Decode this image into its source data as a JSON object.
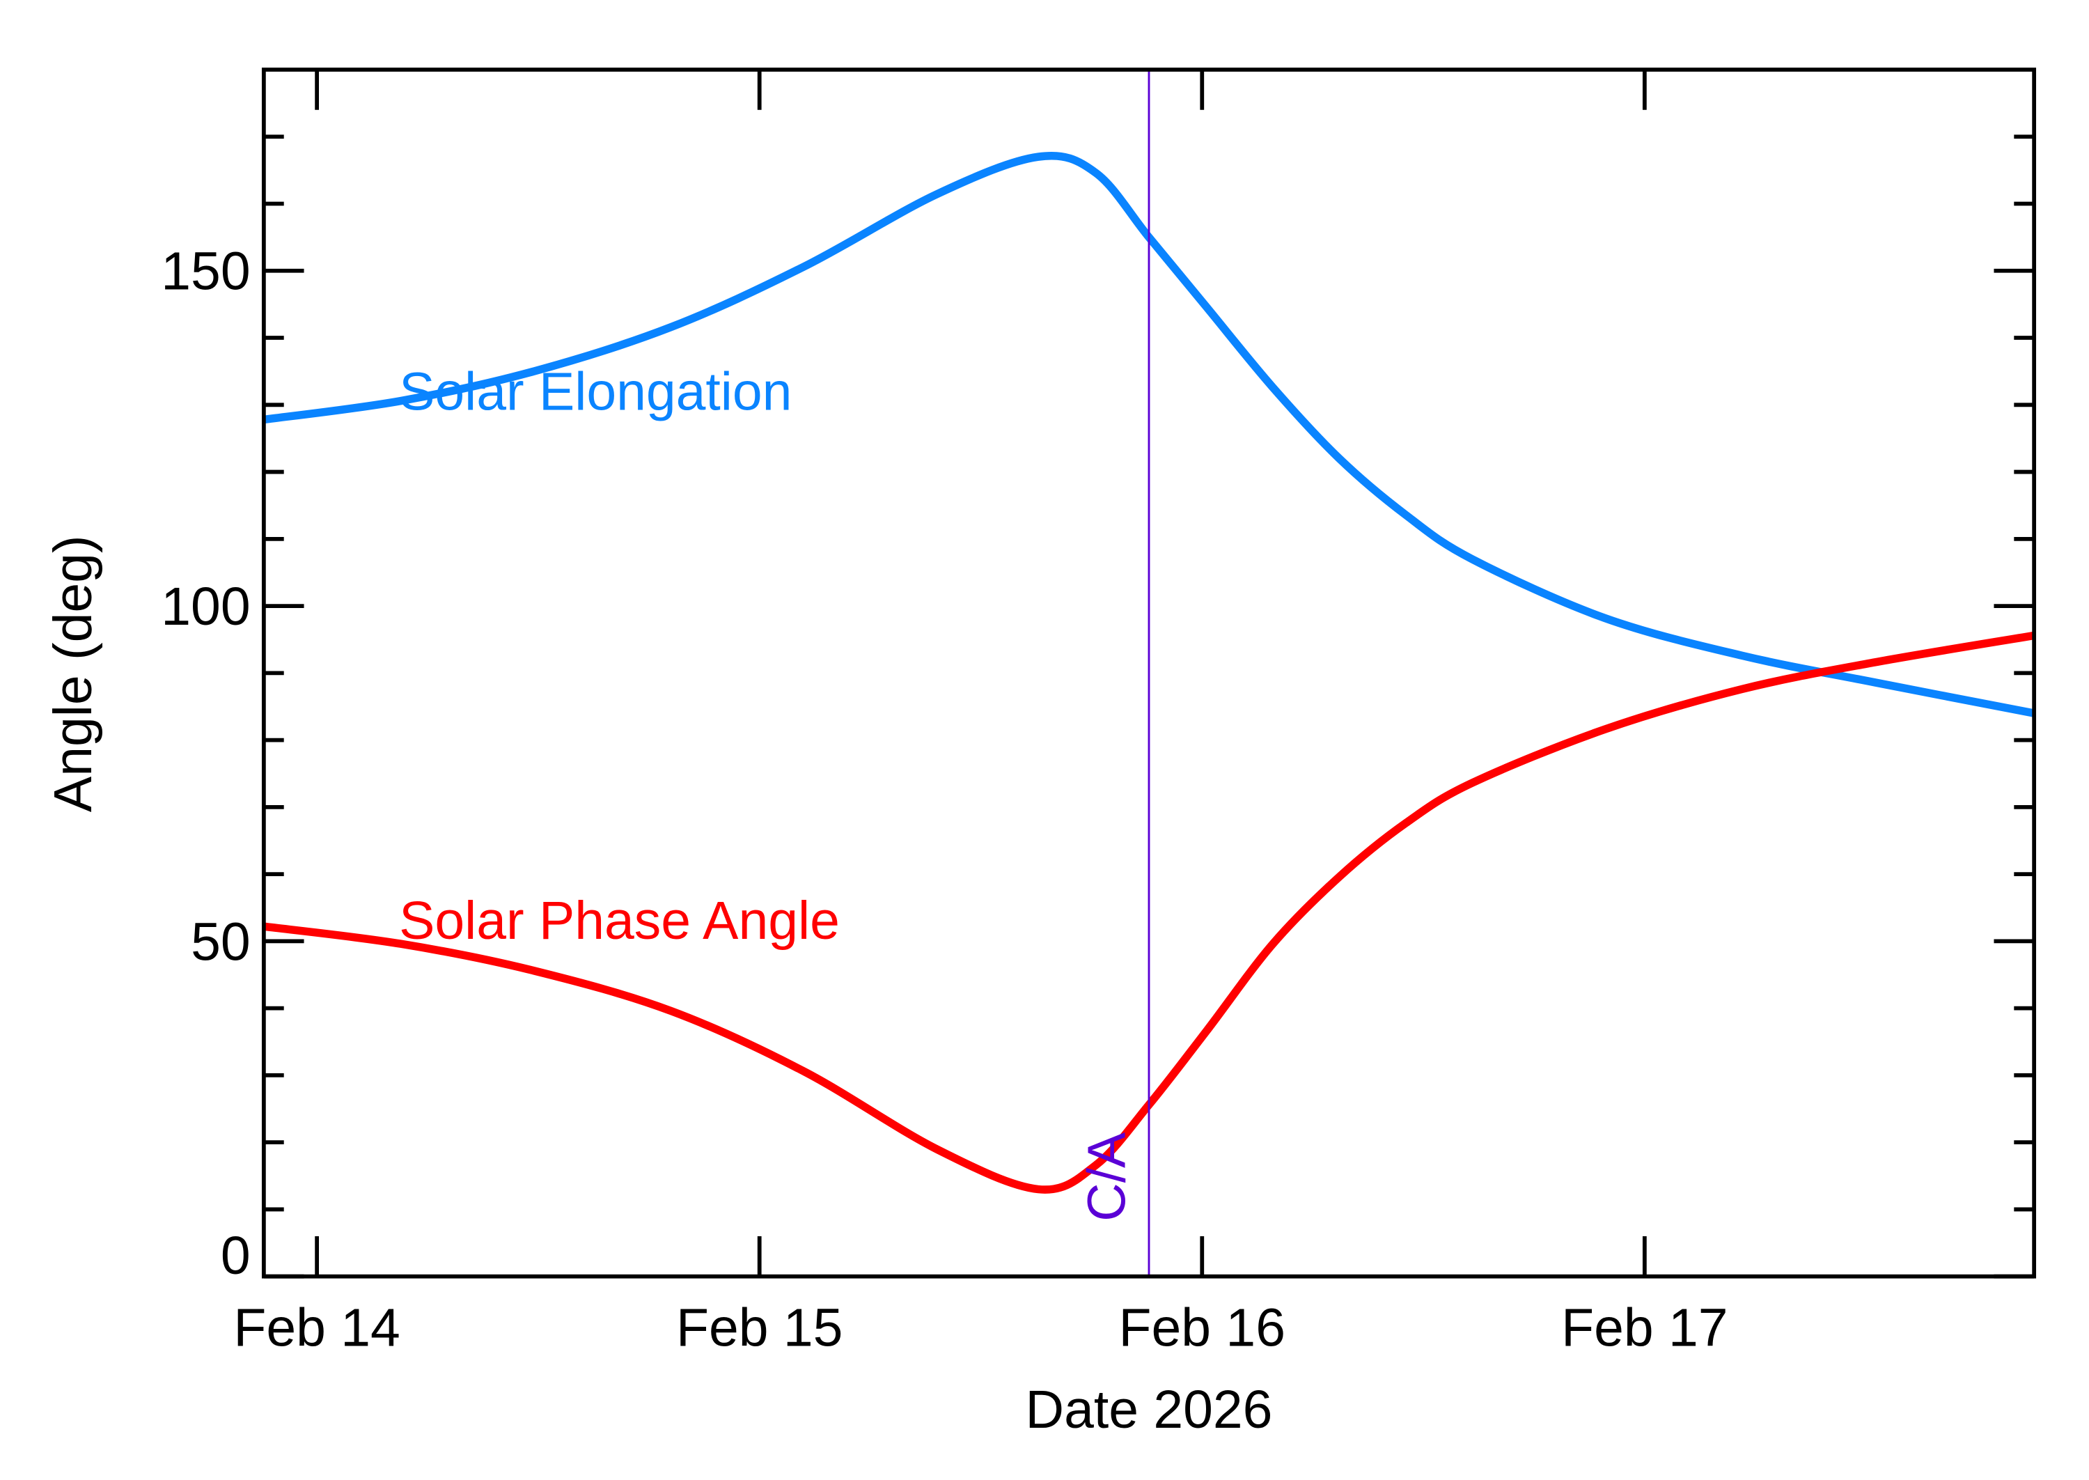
{
  "chart_data": {
    "type": "line",
    "xlabel": "Date 2026",
    "ylabel": "Angle (deg)",
    "x": [
      13.88,
      14.19,
      14.49,
      14.8,
      15.1,
      15.4,
      15.63,
      15.76,
      15.88,
      16.01,
      16.16,
      16.31,
      16.46,
      16.61,
      16.91,
      17.22,
      17.52,
      17.88
    ],
    "series": [
      {
        "name": "Solar Elongation",
        "color": "#0a84ff",
        "values": [
          127.8,
          130.6,
          135,
          141.6,
          150.6,
          161.4,
          167,
          164.6,
          155,
          144.6,
          132.6,
          122,
          113.6,
          107,
          98.2,
          92.6,
          88.6,
          84
        ]
      },
      {
        "name": "Solar Phase Angle",
        "color": "#ff0000",
        "values": [
          52.2,
          49.6,
          45.6,
          39.6,
          30.6,
          19,
          13,
          16.6,
          25.6,
          36.6,
          49.6,
          59.6,
          67.6,
          73.6,
          81.6,
          87.6,
          91.6,
          95.6
        ]
      }
    ],
    "vlines": [
      {
        "x": 15.88,
        "label": "C/A",
        "color": "#5a00d6"
      }
    ],
    "xlim": [
      13.88,
      17.88
    ],
    "xticks": [
      {
        "value": 14,
        "label": "Feb 14"
      },
      {
        "value": 15,
        "label": "Feb 15"
      },
      {
        "value": 16,
        "label": "Feb 16"
      },
      {
        "value": 17,
        "label": "Feb 17"
      }
    ],
    "ylim": [
      0,
      180
    ],
    "yticks": [
      0,
      50,
      100,
      150
    ],
    "yminorticks": [
      10,
      20,
      30,
      40,
      60,
      70,
      80,
      90,
      110,
      120,
      130,
      140,
      160,
      170
    ],
    "grid": false
  }
}
